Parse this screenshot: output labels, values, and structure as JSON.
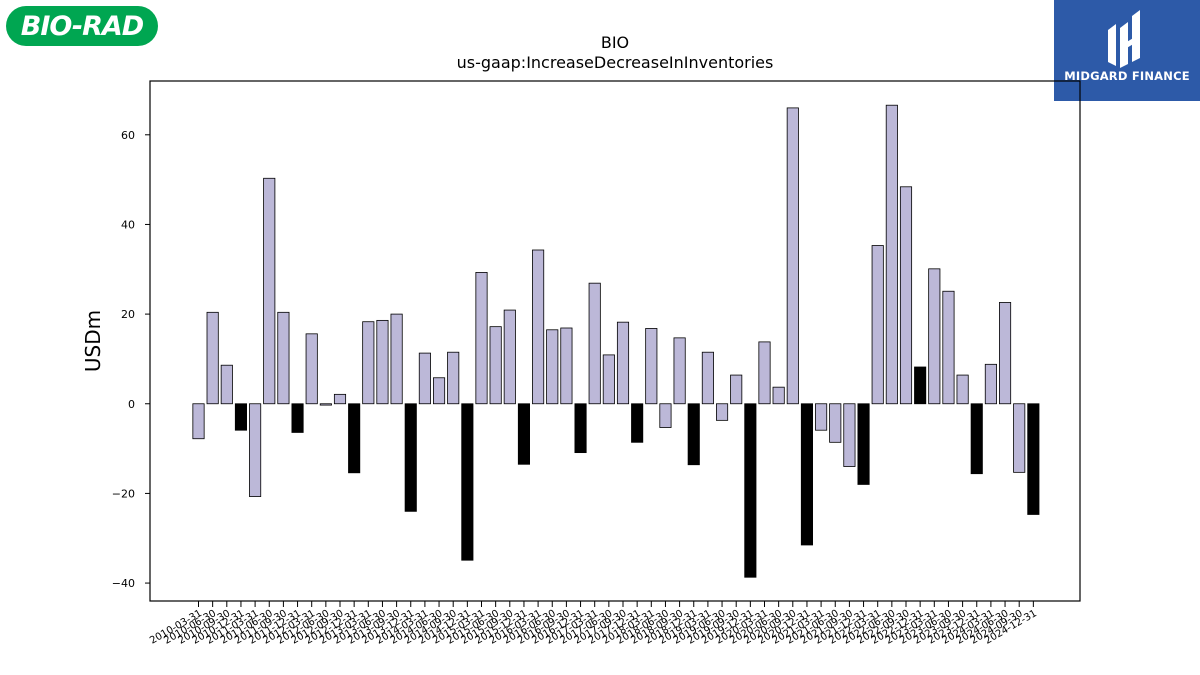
{
  "logos": {
    "left_brand": "BIO-RAD",
    "right_brand": "MIDGARD FINANCE"
  },
  "colors": {
    "positive_bar": "#bcb8d8",
    "negative_bar": "#000000",
    "left_logo_bg": "#00a651",
    "right_logo_bg": "#2d5aa8"
  },
  "chart_data": {
    "type": "bar",
    "title": "BIO",
    "subtitle": "us-gaap:IncreaseDecreaseInInventories",
    "ylabel": "USDm",
    "xlabel": "",
    "ylim": [
      -44,
      72
    ],
    "yticks": [
      -40,
      -20,
      0,
      20,
      40,
      60
    ],
    "ytick_labels": [
      "−40",
      "−20",
      "0",
      "20",
      "40",
      "60"
    ],
    "categories": [
      "2010-03-31",
      "2010-06-30",
      "2010-09-30",
      "2010-12-31",
      "2011-03-31",
      "2011-06-30",
      "2011-09-30",
      "2011-12-31",
      "2012-03-31",
      "2012-06-30",
      "2012-09-30",
      "2012-12-31",
      "2013-03-31",
      "2013-06-30",
      "2013-09-30",
      "2013-12-31",
      "2014-03-31",
      "2014-06-30",
      "2014-09-30",
      "2014-12-31",
      "2015-03-31",
      "2015-06-30",
      "2015-09-30",
      "2015-12-31",
      "2016-03-31",
      "2016-06-30",
      "2016-09-30",
      "2016-12-31",
      "2017-03-31",
      "2017-06-30",
      "2017-09-30",
      "2017-12-31",
      "2018-03-31",
      "2018-06-30",
      "2018-09-30",
      "2018-12-31",
      "2019-03-31",
      "2019-06-30",
      "2019-09-30",
      "2019-12-31",
      "2020-03-31",
      "2020-06-30",
      "2020-09-30",
      "2020-12-31",
      "2021-03-31",
      "2021-06-30",
      "2021-09-30",
      "2021-12-31",
      "2022-03-31",
      "2022-06-30",
      "2022-09-30",
      "2022-12-31",
      "2023-03-31",
      "2023-06-30",
      "2023-09-30",
      "2023-12-31",
      "2024-03-31",
      "2024-06-30",
      "2024-09-30",
      "2024-12-31"
    ],
    "values": [
      -7.8,
      20.4,
      8.6,
      -5.9,
      -20.7,
      50.3,
      20.4,
      -6.4,
      15.6,
      -0.3,
      2.1,
      -15.4,
      18.3,
      18.6,
      20.0,
      -24.0,
      11.3,
      5.8,
      11.5,
      -34.9,
      29.3,
      17.2,
      20.9,
      -13.5,
      34.3,
      16.5,
      16.9,
      -10.9,
      26.9,
      10.9,
      18.2,
      -8.6,
      16.8,
      -5.3,
      14.7,
      -13.6,
      11.5,
      -3.7,
      6.4,
      -38.7,
      13.8,
      3.7,
      66.0,
      -31.5,
      -5.9,
      -8.6,
      -14.0,
      -18.0,
      35.3,
      66.6,
      48.4,
      8.2,
      30.1,
      25.1,
      6.4,
      -15.6,
      8.8,
      22.6,
      -15.3,
      -24.7
    ],
    "bar_color_rule": "Q4 (December 31) bars are black; all other quarters are light purple",
    "grid": false,
    "legend": "none"
  }
}
